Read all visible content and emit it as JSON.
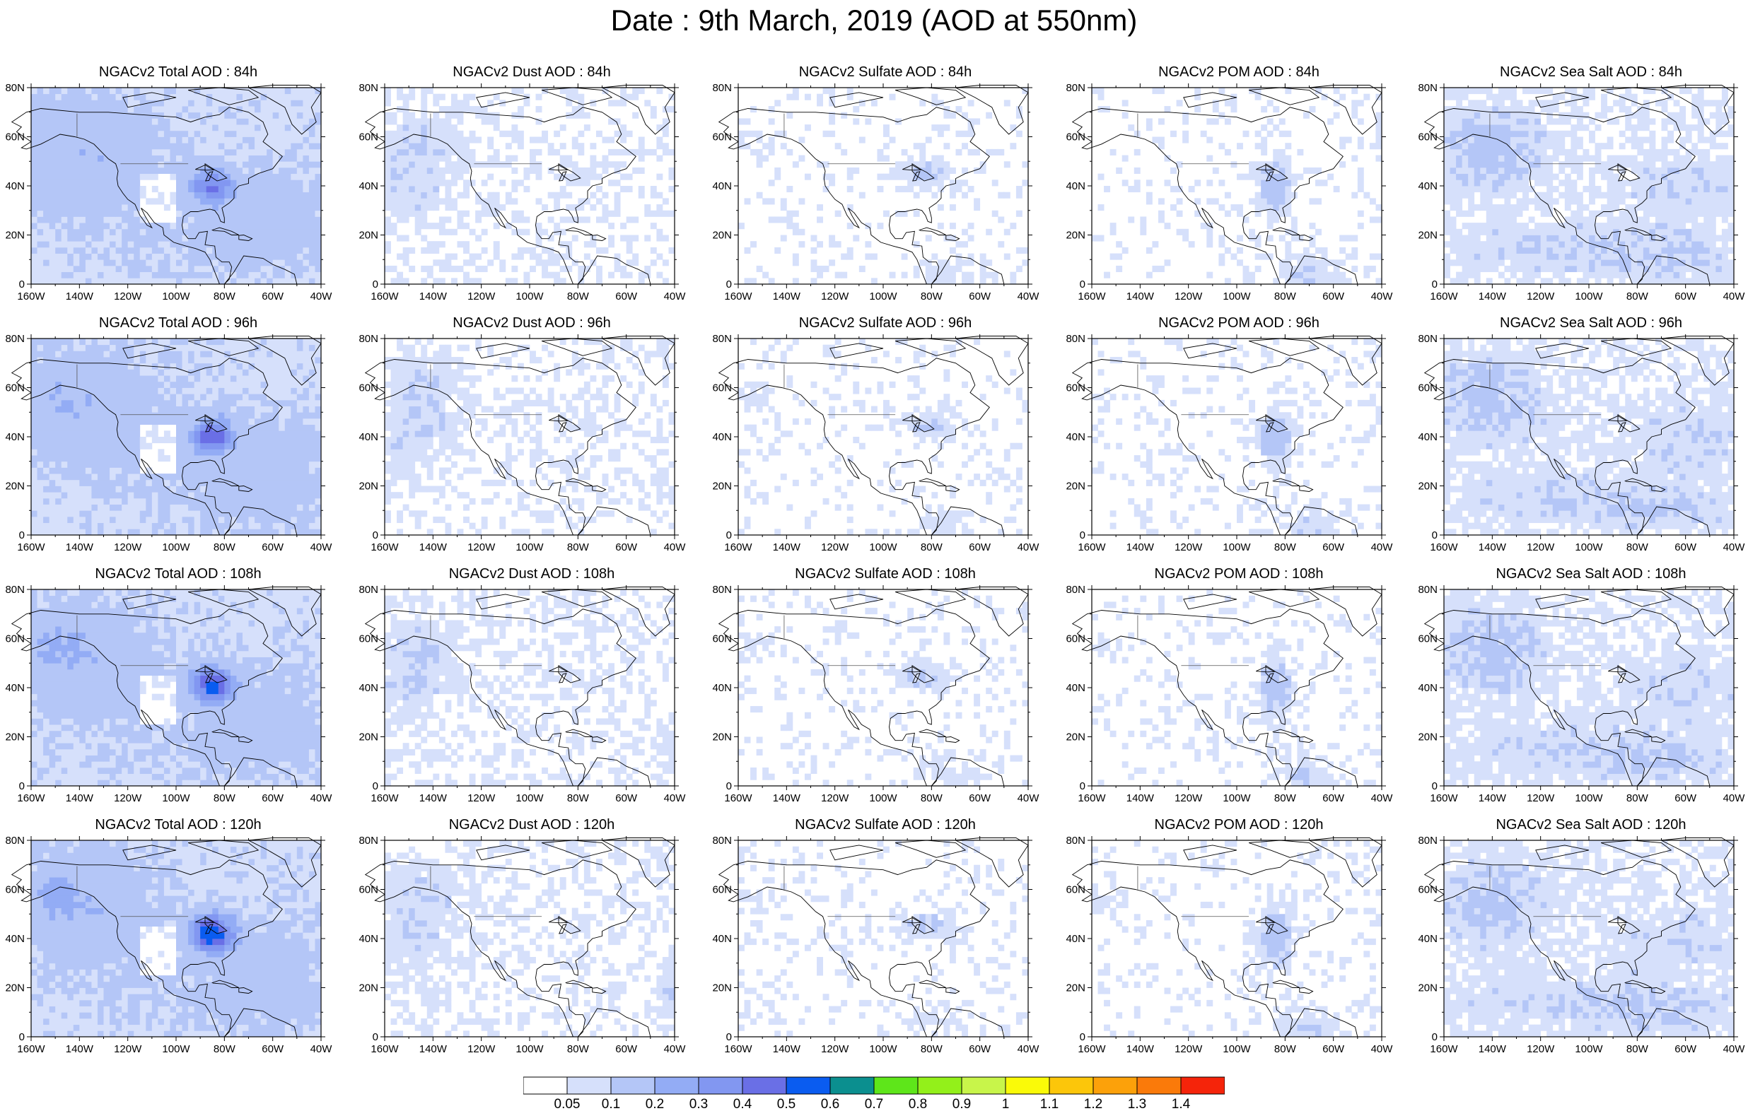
{
  "title": "Date : 9th March, 2019 (AOD at 550nm)",
  "lon_ticks": [
    "160W",
    "140W",
    "120W",
    "100W",
    "80W",
    "60W",
    "40W"
  ],
  "lat_ticks": [
    "0",
    "20N",
    "40N",
    "60N",
    "80N"
  ],
  "panels": [
    {
      "title": "NGACv2 Total AOD : 84h",
      "species": "total",
      "hour": 84
    },
    {
      "title": "NGACv2 Dust AOD : 84h",
      "species": "dust",
      "hour": 84
    },
    {
      "title": "NGACv2 Sulfate AOD : 84h",
      "species": "sulfate",
      "hour": 84
    },
    {
      "title": "NGACv2 POM AOD : 84h",
      "species": "pom",
      "hour": 84
    },
    {
      "title": "NGACv2 Sea Salt AOD : 84h",
      "species": "seasalt",
      "hour": 84
    },
    {
      "title": "NGACv2 Total AOD : 96h",
      "species": "total",
      "hour": 96
    },
    {
      "title": "NGACv2 Dust AOD : 96h",
      "species": "dust",
      "hour": 96
    },
    {
      "title": "NGACv2 Sulfate AOD : 96h",
      "species": "sulfate",
      "hour": 96
    },
    {
      "title": "NGACv2 POM AOD : 96h",
      "species": "pom",
      "hour": 96
    },
    {
      "title": "NGACv2 Sea Salt AOD : 96h",
      "species": "seasalt",
      "hour": 96
    },
    {
      "title": "NGACv2 Total AOD : 108h",
      "species": "total",
      "hour": 108
    },
    {
      "title": "NGACv2 Dust AOD : 108h",
      "species": "dust",
      "hour": 108
    },
    {
      "title": "NGACv2 Sulfate AOD : 108h",
      "species": "sulfate",
      "hour": 108
    },
    {
      "title": "NGACv2 POM AOD : 108h",
      "species": "pom",
      "hour": 108
    },
    {
      "title": "NGACv2 Sea Salt AOD : 108h",
      "species": "seasalt",
      "hour": 108
    },
    {
      "title": "NGACv2 Total AOD : 120h",
      "species": "total",
      "hour": 120
    },
    {
      "title": "NGACv2 Dust AOD : 120h",
      "species": "dust",
      "hour": 120
    },
    {
      "title": "NGACv2 Sulfate AOD : 120h",
      "species": "sulfate",
      "hour": 120
    },
    {
      "title": "NGACv2 POM AOD : 120h",
      "species": "pom",
      "hour": 120
    },
    {
      "title": "NGACv2 Sea Salt  AOD : 120h",
      "species": "seasalt",
      "hour": 120
    }
  ],
  "colorbar": {
    "labels": [
      "0.05",
      "0.1",
      "0.2",
      "0.3",
      "0.4",
      "0.5",
      "0.6",
      "0.7",
      "0.8",
      "0.9",
      "1",
      "1.1",
      "1.2",
      "1.3",
      "1.4"
    ],
    "colors": [
      "#ffffff",
      "#d6e0fb",
      "#b4c6f7",
      "#93acf5",
      "#8297f1",
      "#6a6fe6",
      "#0a5cf0",
      "#0b8f8f",
      "#5ee61a",
      "#93f01a",
      "#c8f54a",
      "#fafa08",
      "#fcc60a",
      "#fca10a",
      "#fa7a0a",
      "#f5240a"
    ]
  },
  "chart_data": {
    "type": "heatmap",
    "domain": {
      "lon_range_deg": [
        -160,
        -40
      ],
      "lat_range_deg": [
        0,
        80
      ]
    },
    "colorbar_levels": [
      0.05,
      0.1,
      0.2,
      0.3,
      0.4,
      0.5,
      0.6,
      0.7,
      0.8,
      0.9,
      1,
      1.1,
      1.2,
      1.3,
      1.4
    ],
    "rows_hours": [
      84,
      96,
      108,
      120
    ],
    "columns_species": [
      "Total",
      "Dust",
      "Sulfate",
      "POM",
      "Sea Salt"
    ]
  }
}
